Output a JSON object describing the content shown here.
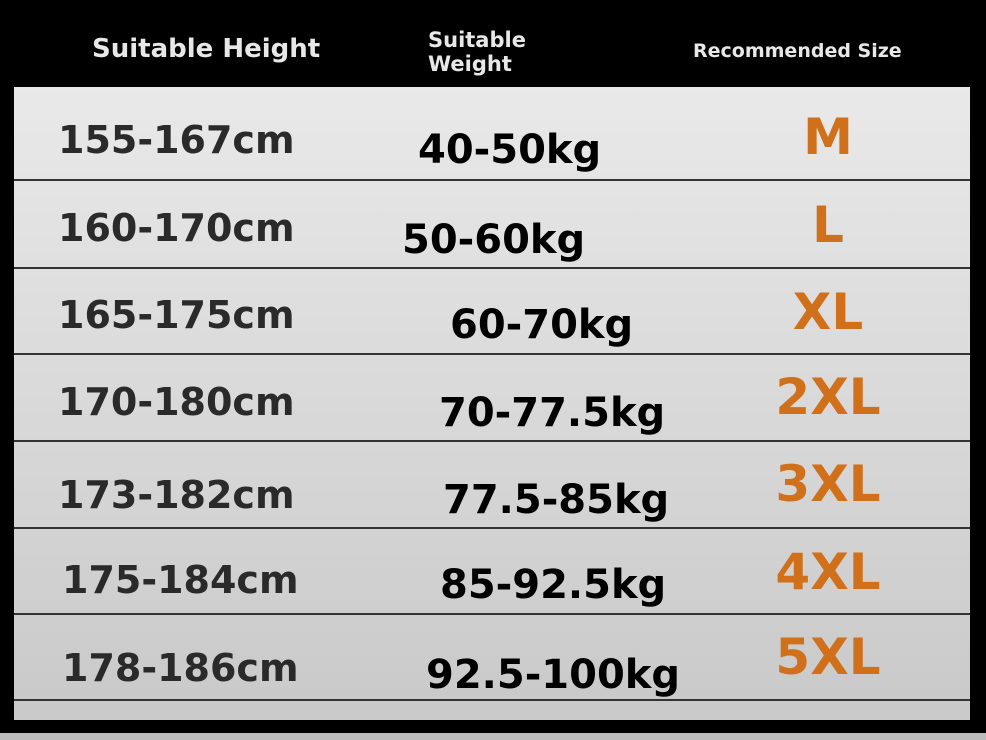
{
  "headers": {
    "height": "Suitable Height",
    "weight_line1": "Suitable",
    "weight_line2": "Weight",
    "size": "Recommended Size"
  },
  "accent_color": "#d0701a",
  "rows": [
    {
      "height": "155-167cm",
      "weight": "40-50kg",
      "size": "M"
    },
    {
      "height": "160-170cm",
      "weight": "50-60kg",
      "size": "L"
    },
    {
      "height": "165-175cm",
      "weight": "60-70kg",
      "size": "XL"
    },
    {
      "height": "170-180cm",
      "weight": "70-77.5kg",
      "size": "2XL"
    },
    {
      "height": "173-182cm",
      "weight": "77.5-85kg",
      "size": "3XL"
    },
    {
      "height": "175-184cm",
      "weight": "85-92.5kg",
      "size": "4XL"
    },
    {
      "height": "178-186cm",
      "weight": "92.5-100kg",
      "size": "5XL"
    }
  ]
}
